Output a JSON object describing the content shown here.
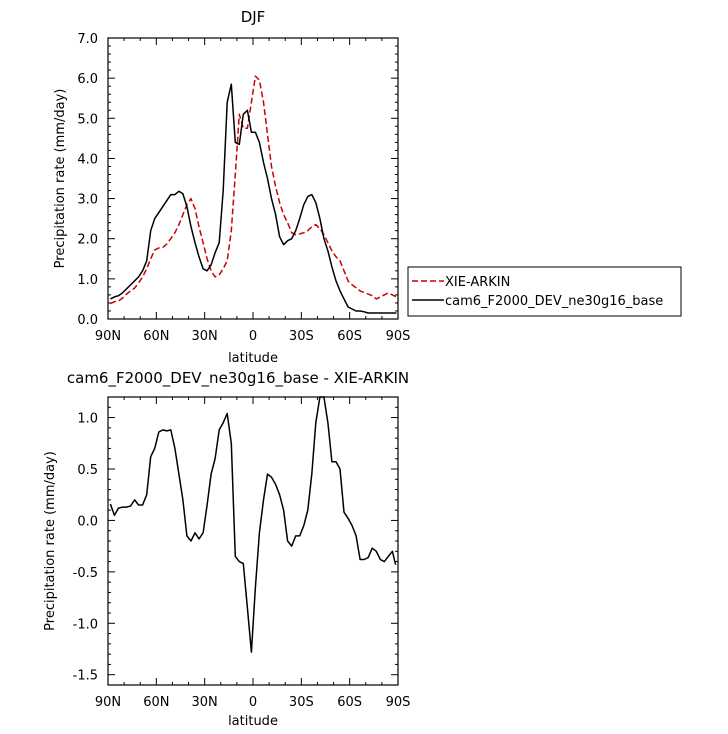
{
  "chart_data": [
    {
      "type": "line",
      "title": "DJF",
      "xlabel": "latitude",
      "ylabel": "Precipitation rate (mm/day)",
      "xlim": [
        90,
        -90
      ],
      "ylim": [
        0,
        7
      ],
      "x_ticks": [
        90,
        60,
        30,
        0,
        -30,
        -60,
        -90
      ],
      "x_tick_labels": [
        "90N",
        "60N",
        "30N",
        "0",
        "30S",
        "60S",
        "90S"
      ],
      "y_ticks": [
        0,
        1,
        2,
        3,
        4,
        5,
        6,
        7
      ],
      "y_tick_labels": [
        "0.0",
        "1.0",
        "2.0",
        "3.0",
        "4.0",
        "5.0",
        "6.0",
        "7.0"
      ],
      "legend": {
        "placement": "right",
        "entries": [
          {
            "series": 0,
            "label": "XIE-ARKIN"
          },
          {
            "series": 1,
            "label": "cam6_F2000_DEV_ne30g16_base"
          }
        ]
      },
      "x": [
        88.5,
        86,
        83.5,
        81,
        78.5,
        76,
        73.5,
        71,
        68.5,
        66,
        63.5,
        61,
        58.5,
        56,
        53.5,
        51,
        48.5,
        46,
        43.5,
        41,
        38.5,
        36,
        33.5,
        31,
        28.5,
        26,
        23.5,
        21,
        18.5,
        16,
        13.5,
        11,
        8.5,
        6,
        3.5,
        1,
        -1.5,
        -4,
        -6.5,
        -9,
        -11.5,
        -14,
        -16.5,
        -19,
        -21.5,
        -24,
        -26.5,
        -29,
        -31.5,
        -34,
        -36.5,
        -39,
        -41.5,
        -44,
        -46.5,
        -49,
        -51.5,
        -54,
        -56.5,
        -59,
        -61.5,
        -64,
        -66.5,
        -69,
        -71.5,
        -74,
        -76.5,
        -79,
        -81.5,
        -84,
        -86.5,
        -89
      ],
      "series": [
        {
          "name": "XIE-ARKIN",
          "color": "#cc0000",
          "dash": "dashed",
          "values": [
            0.38,
            0.43,
            0.45,
            0.52,
            0.62,
            0.7,
            0.77,
            0.9,
            1.05,
            1.25,
            1.5,
            1.72,
            1.77,
            1.78,
            1.87,
            2.0,
            2.15,
            2.35,
            2.6,
            2.85,
            3.0,
            2.75,
            2.3,
            1.9,
            1.5,
            1.2,
            1.05,
            1.1,
            1.25,
            1.45,
            2.2,
            3.6,
            5.1,
            4.75,
            4.75,
            5.4,
            6.05,
            5.95,
            5.4,
            4.6,
            3.8,
            3.3,
            2.9,
            2.6,
            2.4,
            2.15,
            2.1,
            2.12,
            2.15,
            2.2,
            2.3,
            2.35,
            2.25,
            2.1,
            1.9,
            1.7,
            1.55,
            1.45,
            1.2,
            0.95,
            0.85,
            0.78,
            0.7,
            0.66,
            0.62,
            0.58,
            0.5,
            0.55,
            0.6,
            0.65,
            0.6,
            0.55
          ]
        },
        {
          "name": "cam6_F2000_DEV_ne30g16_base",
          "color": "#000000",
          "dash": "solid",
          "values": [
            0.5,
            0.55,
            0.58,
            0.65,
            0.75,
            0.85,
            0.95,
            1.05,
            1.2,
            1.45,
            2.2,
            2.5,
            2.65,
            2.8,
            2.95,
            3.1,
            3.1,
            3.18,
            3.12,
            2.8,
            2.3,
            1.9,
            1.55,
            1.25,
            1.2,
            1.35,
            1.65,
            1.9,
            3.2,
            5.4,
            5.85,
            4.4,
            4.35,
            5.1,
            5.2,
            4.65,
            4.65,
            4.4,
            3.9,
            3.5,
            3.0,
            2.6,
            2.05,
            1.85,
            1.95,
            2.0,
            2.2,
            2.5,
            2.85,
            3.05,
            3.1,
            2.9,
            2.5,
            2.0,
            1.7,
            1.3,
            0.95,
            0.7,
            0.5,
            0.3,
            0.25,
            0.2,
            0.2,
            0.18,
            0.15,
            0.15,
            0.15,
            0.15,
            0.15,
            0.15,
            0.15,
            0.15
          ]
        }
      ]
    },
    {
      "type": "line",
      "title": "cam6_F2000_DEV_ne30g16_base - XIE-ARKIN",
      "xlabel": "latitude",
      "ylabel": "Precipitation rate (mm/day)",
      "xlim": [
        90,
        -90
      ],
      "ylim": [
        -1.6,
        1.2
      ],
      "x_ticks": [
        90,
        60,
        30,
        0,
        -30,
        -60,
        -90
      ],
      "x_tick_labels": [
        "90N",
        "60N",
        "30N",
        "0",
        "30S",
        "60S",
        "90S"
      ],
      "y_ticks": [
        -1.5,
        -1.0,
        -0.5,
        0.0,
        0.5,
        1.0
      ],
      "y_tick_labels": [
        "-1.5",
        "-1.0",
        "-0.5",
        "0.0",
        "0.5",
        "1.0"
      ],
      "x": [
        88.5,
        86,
        83.5,
        81,
        78.5,
        76,
        73.5,
        71,
        68.5,
        66,
        63.5,
        61,
        58.5,
        56,
        53.5,
        51,
        48.5,
        46,
        43.5,
        41,
        38.5,
        36,
        33.5,
        31,
        28.5,
        26,
        23.5,
        21,
        18.5,
        16,
        13.5,
        11,
        8.5,
        6,
        3.5,
        1,
        -1.5,
        -4,
        -6.5,
        -9,
        -11.5,
        -14,
        -16.5,
        -19,
        -21.5,
        -24,
        -26.5,
        -29,
        -31.5,
        -34,
        -36.5,
        -39,
        -41.5,
        -44,
        -46.5,
        -49,
        -51.5,
        -54,
        -56.5,
        -59,
        -61.5,
        -64,
        -66.5,
        -69,
        -71.5,
        -74,
        -76.5,
        -79,
        -81.5,
        -84,
        -86.5,
        -88.5
      ],
      "series": [
        {
          "color": "#000000",
          "dash": "solid",
          "values": [
            0.16,
            0.05,
            0.12,
            0.13,
            0.13,
            0.14,
            0.2,
            0.15,
            0.15,
            0.25,
            0.62,
            0.7,
            0.86,
            0.88,
            0.87,
            0.88,
            0.7,
            0.45,
            0.2,
            -0.15,
            -0.2,
            -0.12,
            -0.18,
            -0.12,
            0.15,
            0.45,
            0.6,
            0.88,
            0.95,
            1.04,
            0.75,
            -0.35,
            -0.4,
            -0.42,
            -0.85,
            -1.28,
            -0.65,
            -0.12,
            0.2,
            0.45,
            0.42,
            0.35,
            0.25,
            0.1,
            -0.2,
            -0.25,
            -0.15,
            -0.15,
            -0.05,
            0.1,
            0.45,
            0.95,
            1.2,
            1.2,
            0.95,
            0.57,
            0.57,
            0.5,
            0.08,
            0.02,
            -0.05,
            -0.15,
            -0.38,
            -0.38,
            -0.36,
            -0.27,
            -0.3,
            -0.38,
            -0.4,
            -0.35,
            -0.3,
            -0.43
          ]
        }
      ]
    }
  ]
}
